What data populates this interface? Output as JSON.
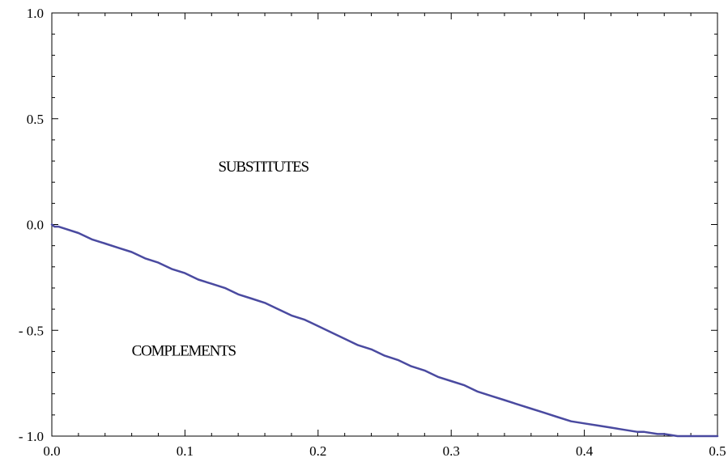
{
  "chart_data": {
    "type": "line",
    "xlim": [
      0.0,
      0.5
    ],
    "ylim": [
      -1.0,
      1.0
    ],
    "grid": false,
    "x_ticks": [
      {
        "value": 0.0,
        "label": "0.0"
      },
      {
        "value": 0.1,
        "label": "0.1"
      },
      {
        "value": 0.2,
        "label": "0.2"
      },
      {
        "value": 0.3,
        "label": "0.3"
      },
      {
        "value": 0.4,
        "label": "0.4"
      },
      {
        "value": 0.5,
        "label": "0.5"
      }
    ],
    "y_ticks": [
      {
        "value": 1.0,
        "label": "1.0"
      },
      {
        "value": 0.5,
        "label": "0.5"
      },
      {
        "value": 0.0,
        "label": "0.0"
      },
      {
        "value": -0.5,
        "label": "- 0.5"
      },
      {
        "value": -1.0,
        "label": "- 1.0"
      }
    ],
    "annotations": [
      {
        "text": "SUBSTITUTES",
        "x": 0.125,
        "y": 0.25
      },
      {
        "text": "COMPLEMENTS",
        "x": 0.06,
        "y": -0.62
      }
    ],
    "series": [
      {
        "color": "#4a4aa0",
        "x": [
          0.0,
          0.002,
          0.005,
          0.01,
          0.02,
          0.03,
          0.04,
          0.05,
          0.06,
          0.07,
          0.08,
          0.09,
          0.1,
          0.11,
          0.12,
          0.13,
          0.14,
          0.15,
          0.16,
          0.17,
          0.18,
          0.19,
          0.2,
          0.21,
          0.22,
          0.23,
          0.24,
          0.25,
          0.26,
          0.27,
          0.28,
          0.29,
          0.3,
          0.31,
          0.32,
          0.33,
          0.34,
          0.35,
          0.36,
          0.37,
          0.38,
          0.39,
          0.4,
          0.41,
          0.42,
          0.43,
          0.44,
          0.445,
          0.455,
          0.46,
          0.47,
          0.475,
          0.49,
          0.5
        ],
        "y": [
          0.0,
          -0.01,
          -0.01,
          -0.02,
          -0.04,
          -0.07,
          -0.09,
          -0.11,
          -0.13,
          -0.16,
          -0.18,
          -0.21,
          -0.23,
          -0.26,
          -0.28,
          -0.3,
          -0.33,
          -0.35,
          -0.37,
          -0.4,
          -0.43,
          -0.45,
          -0.48,
          -0.51,
          -0.54,
          -0.57,
          -0.59,
          -0.62,
          -0.64,
          -0.67,
          -0.69,
          -0.72,
          -0.74,
          -0.76,
          -0.79,
          -0.81,
          -0.83,
          -0.85,
          -0.87,
          -0.89,
          -0.91,
          -0.93,
          -0.94,
          -0.95,
          -0.96,
          -0.97,
          -0.98,
          -0.98,
          -0.99,
          -0.99,
          -1.0,
          -1.0,
          -1.0,
          -1.0
        ]
      }
    ]
  }
}
